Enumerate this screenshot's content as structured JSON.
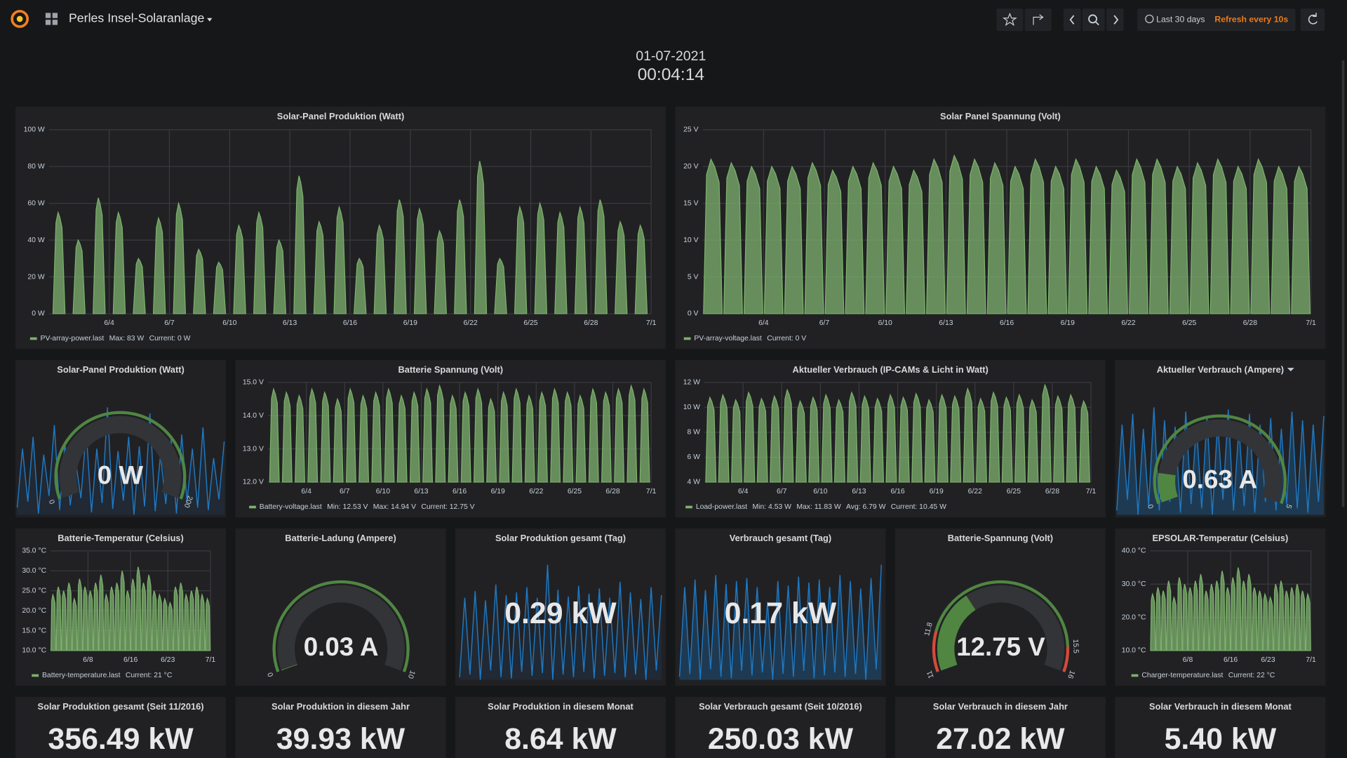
{
  "header": {
    "title": "Perles Insel-Solaranlage",
    "time_range": "Last 30 days",
    "refresh": "Refresh every 10s"
  },
  "clock": {
    "date": "01-07-2021",
    "time": "00:04:14"
  },
  "graphs": [
    {
      "type": "area",
      "title": "Solar-Panel Produktion (Watt)",
      "xlim": [
        "6/1",
        "7/1"
      ],
      "xticks": [
        "6/4",
        "6/7",
        "6/10",
        "6/13",
        "6/16",
        "6/19",
        "6/22",
        "6/25",
        "6/28",
        "7/1"
      ],
      "ylim": [
        0,
        100
      ],
      "yticks": [
        {
          "value": 0,
          "label": "0 W"
        },
        {
          "value": 20,
          "label": "20 W"
        },
        {
          "value": 40,
          "label": "40 W"
        },
        {
          "value": 60,
          "label": "60 W"
        },
        {
          "value": 80,
          "label": "80 W"
        },
        {
          "value": 100,
          "label": "100 W"
        }
      ],
      "series": [
        {
          "name": "PV-array-power.last",
          "color": "#7eb26d",
          "values": [
            55,
            40,
            63,
            55,
            30,
            52,
            60,
            35,
            28,
            48,
            55,
            40,
            75,
            50,
            58,
            30,
            48,
            62,
            57,
            45,
            62,
            83,
            30,
            58,
            60,
            55,
            58,
            62,
            50,
            48
          ]
        }
      ],
      "legend_stats": [
        "Max: 83 W",
        "Current: 0 W"
      ]
    },
    {
      "type": "area",
      "title": "Solar Panel Spannung (Volt)",
      "xlim": [
        "6/1",
        "7/1"
      ],
      "xticks": [
        "6/4",
        "6/7",
        "6/10",
        "6/13",
        "6/16",
        "6/19",
        "6/22",
        "6/25",
        "6/28",
        "7/1"
      ],
      "ylim": [
        0,
        25
      ],
      "yticks": [
        {
          "value": 0,
          "label": "0 V"
        },
        {
          "value": 5,
          "label": "5 V"
        },
        {
          "value": 10,
          "label": "10 V"
        },
        {
          "value": 15,
          "label": "15 V"
        },
        {
          "value": 20,
          "label": "20 V"
        },
        {
          "value": 25,
          "label": "25 V"
        }
      ],
      "series": [
        {
          "name": "PV-array-voltage.last",
          "color": "#7eb26d",
          "values": [
            21,
            20.5,
            20,
            20,
            20,
            20.5,
            19.5,
            20,
            20.5,
            20,
            19.5,
            21,
            21.5,
            21,
            20.5,
            20,
            21,
            20,
            21,
            20,
            19.5,
            21,
            21,
            20,
            20.5,
            21,
            20,
            21,
            20,
            20
          ]
        }
      ],
      "legend_stats": [
        "Current: 0 V"
      ]
    },
    {
      "type": "area",
      "title": "Batterie Spannung (Volt)",
      "xlim": [
        "6/1",
        "7/1"
      ],
      "xticks": [
        "6/4",
        "6/7",
        "6/10",
        "6/13",
        "6/16",
        "6/19",
        "6/22",
        "6/25",
        "6/28",
        "7/1"
      ],
      "ylim": [
        12,
        15
      ],
      "yticks": [
        {
          "value": 12,
          "label": "12.0 V"
        },
        {
          "value": 13,
          "label": "13.0 V"
        },
        {
          "value": 14,
          "label": "14.0 V"
        },
        {
          "value": 15,
          "label": "15.0 V"
        }
      ],
      "series": [
        {
          "name": "Battery-voltage.last",
          "color": "#7eb26d",
          "values": [
            14.8,
            14.7,
            14.6,
            14.8,
            14.7,
            14.5,
            14.8,
            14.6,
            14.7,
            14.8,
            14.6,
            14.7,
            14.8,
            14.9,
            14.6,
            14.7,
            14.8,
            14.5,
            14.7,
            14.8,
            14.6,
            14.7,
            14.8,
            14.7,
            14.6,
            14.8,
            14.7,
            14.8,
            14.9,
            14.8
          ]
        }
      ],
      "legend_stats": [
        "Min: 12.53 V",
        "Max: 14.94 V",
        "Current: 12.75 V"
      ]
    },
    {
      "type": "area",
      "title": "Aktueller Verbrauch (IP-CAMs & Licht in Watt)",
      "xlim": [
        "6/1",
        "7/1"
      ],
      "xticks": [
        "6/4",
        "6/7",
        "6/10",
        "6/13",
        "6/16",
        "6/19",
        "6/22",
        "6/25",
        "6/28",
        "7/1"
      ],
      "ylim": [
        4,
        12
      ],
      "yticks": [
        {
          "value": 4,
          "label": "4 W"
        },
        {
          "value": 6,
          "label": "6 W"
        },
        {
          "value": 8,
          "label": "8 W"
        },
        {
          "value": 10,
          "label": "10 W"
        },
        {
          "value": 12,
          "label": "12 W"
        }
      ],
      "series": [
        {
          "name": "Load-power.last",
          "color": "#7eb26d",
          "values": [
            10.8,
            11,
            10.6,
            11.2,
            10.7,
            10.9,
            11.4,
            10.5,
            10.8,
            11,
            10.6,
            11.2,
            10.9,
            10.7,
            11,
            10.8,
            11.1,
            10.6,
            11,
            10.9,
            11.5,
            10.7,
            11.2,
            10.8,
            11,
            10.6,
            11.8,
            10.9,
            11,
            10.5
          ]
        }
      ],
      "legend_stats": [
        "Min: 4.53 W",
        "Max: 11.83 W",
        "Avg: 6.79 W",
        "Current: 10.45 W"
      ]
    },
    {
      "type": "area",
      "title": "Batterie-Temperatur (Celsius)",
      "xlim": [
        "6/1",
        "7/1"
      ],
      "xticks": [
        "6/8",
        "6/16",
        "6/23",
        "7/1"
      ],
      "ylim": [
        10,
        35
      ],
      "yticks": [
        {
          "value": 10,
          "label": "10.0 °C"
        },
        {
          "value": 15,
          "label": "15.0 °C"
        },
        {
          "value": 20,
          "label": "20.0 °C"
        },
        {
          "value": 25,
          "label": "25.0 °C"
        },
        {
          "value": 30,
          "label": "30.0 °C"
        },
        {
          "value": 35,
          "label": "35.0 °C"
        }
      ],
      "series": [
        {
          "name": "Battery-temperature.last",
          "color": "#7eb26d",
          "values": [
            24,
            26,
            25,
            27,
            23,
            28,
            26,
            25,
            27,
            29,
            24,
            26,
            27,
            30,
            25,
            28,
            31,
            27,
            29,
            25,
            24,
            23,
            22,
            26,
            27,
            24,
            25,
            26,
            24,
            23
          ]
        }
      ],
      "legend_stats": [
        "Current: 21 °C"
      ]
    },
    {
      "type": "area",
      "title": "EPSOLAR-Temperatur (Celsius)",
      "xlim": [
        "6/1",
        "7/1"
      ],
      "xticks": [
        "6/8",
        "6/16",
        "6/23",
        "7/1"
      ],
      "ylim": [
        10,
        40
      ],
      "yticks": [
        {
          "value": 10,
          "label": "10.0 °C"
        },
        {
          "value": 20,
          "label": "20.0 °C"
        },
        {
          "value": 30,
          "label": "30.0 °C"
        },
        {
          "value": 40,
          "label": "40.0 °C"
        }
      ],
      "series": [
        {
          "name": "Charger-temperature.last",
          "color": "#7eb26d",
          "values": [
            27,
            29,
            28,
            31,
            26,
            32,
            30,
            29,
            31,
            33,
            28,
            30,
            31,
            34,
            29,
            32,
            35,
            31,
            33,
            29,
            28,
            27,
            26,
            30,
            31,
            28,
            29,
            30,
            28,
            27
          ]
        }
      ],
      "legend_stats": [
        "Current: 22 °C"
      ]
    }
  ],
  "gauges": [
    {
      "title": "Solar-Panel Produktion (Watt)",
      "value": 0,
      "value_label": "0 W",
      "ticks": [
        0,
        200
      ],
      "band_colors": [
        "#508642"
      ],
      "fill_color": "#508642",
      "spark": {
        "color": "#1f78c1",
        "values": [
          10,
          60,
          15,
          70,
          5,
          55,
          20,
          80,
          8,
          65,
          12,
          50,
          18,
          75,
          6,
          60,
          14,
          95,
          9,
          58,
          16,
          70,
          4,
          62,
          11,
          90,
          7,
          55,
          13,
          68,
          5,
          72,
          15,
          60,
          10,
          78,
          8,
          52,
          17,
          66
        ]
      }
    },
    {
      "title": "Aktueller Verbrauch (Ampere)",
      "value": 0.63,
      "value_label": "0.63 A",
      "ticks": [
        0,
        5
      ],
      "band_colors": [
        "#508642"
      ],
      "fill_color": "#508642",
      "spark": {
        "color": "#1f78c1",
        "values": [
          40,
          80,
          45,
          85,
          38,
          78,
          42,
          88,
          40,
          82,
          44,
          79,
          39,
          86,
          43,
          80,
          41,
          84,
          38,
          81,
          45,
          87,
          40,
          79,
          42,
          85,
          39,
          80,
          44,
          83,
          40,
          78,
          43,
          86,
          41,
          82,
          39,
          80,
          44,
          84
        ]
      }
    },
    {
      "title": "Batterie-Ladung (Ampere)",
      "value": 0.03,
      "value_label": "0.03 A",
      "ticks": [
        0,
        10
      ],
      "band_colors": [
        "#508642"
      ],
      "fill_color": "#508642"
    },
    {
      "title": "Batterie-Spannung (Volt)",
      "value": 12.75,
      "value_label": "12.75 V",
      "ticks": [
        11,
        11.8,
        15.5,
        16
      ],
      "band_colors": [
        "#d44a3a",
        "#508642",
        "#d44a3a"
      ],
      "fill_color": "#508642"
    }
  ],
  "stats": [
    {
      "title": "Solar Produktion gesamt (Tag)",
      "value": 0.29,
      "value_label": "0.29 kW",
      "spark": {
        "color": "#1f78c1",
        "values": [
          10,
          70,
          12,
          75,
          8,
          68,
          15,
          80,
          10,
          72,
          9,
          74,
          14,
          78,
          11,
          70,
          13,
          95,
          8,
          76,
          12,
          71,
          10,
          79,
          14,
          73,
          9,
          77,
          11,
          70,
          13,
          82,
          10,
          74,
          12,
          69,
          8,
          78,
          15,
          72
        ]
      }
    },
    {
      "title": "Verbrauch gesamt (Tag)",
      "value": 0.17,
      "value_label": "0.17 kW",
      "spark": {
        "color": "#1f78c1",
        "values": [
          20,
          80,
          22,
          85,
          18,
          78,
          25,
          88,
          20,
          82,
          19,
          84,
          24,
          86,
          21,
          80,
          23,
          70,
          18,
          84,
          22,
          81,
          20,
          87,
          24,
          83,
          19,
          85,
          21,
          80,
          23,
          88,
          20,
          84,
          22,
          79,
          18,
          86,
          25,
          95
        ]
      }
    },
    {
      "title": "Solar Produktion gesamt (Seit 11/2016)",
      "value": 356.49,
      "value_label": "356.49 kW"
    },
    {
      "title": "Solar Produktion in diesem Jahr",
      "value": 39.93,
      "value_label": "39.93 kW"
    },
    {
      "title": "Solar Produktion in diesem Monat",
      "value": 8.64,
      "value_label": "8.64 kW"
    },
    {
      "title": "Solar Verbrauch gesamt (Seit 10/2016)",
      "value": 250.03,
      "value_label": "250.03 kW"
    },
    {
      "title": "Solar Verbrauch in diesem Jahr",
      "value": 27.02,
      "value_label": "27.02 kW"
    },
    {
      "title": "Solar Verbrauch in diesem Monat",
      "value": 5.4,
      "value_label": "5.40 kW"
    }
  ]
}
